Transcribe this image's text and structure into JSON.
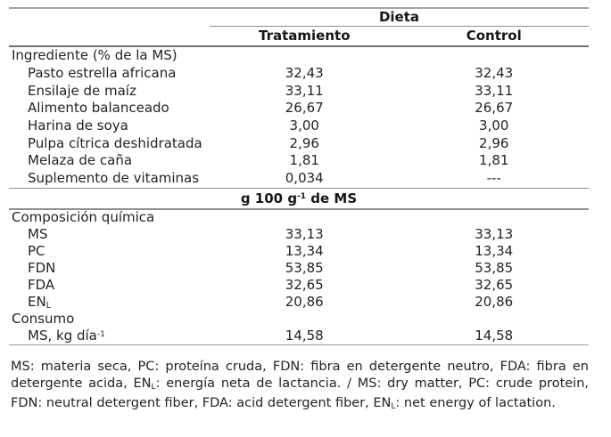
{
  "colors": {
    "background": "#ffffff",
    "text": "#232323",
    "bold_text": "#161616",
    "rule_light": "#a2a2a2",
    "rule_medium": "#8f8f8f",
    "rule_dark": "#707070"
  },
  "table": {
    "header": {
      "group": "Dieta",
      "treatment": "Tratamiento",
      "control": "Control"
    },
    "ingredients": {
      "title": "Ingrediente (% de la MS)",
      "rows": [
        {
          "label": "Pasto estrella africana",
          "treatment": "32,43",
          "control": "32,43"
        },
        {
          "label": "Ensilaje de maíz",
          "treatment": "33,11",
          "control": "33,11"
        },
        {
          "label": "Alimento balanceado",
          "treatment": "26,67",
          "control": "26,67"
        },
        {
          "label": "Harina de soya",
          "treatment": "3,00",
          "control": "3,00"
        },
        {
          "label": "Pulpa cítrica deshidratada",
          "treatment": "2,96",
          "control": "2,96"
        },
        {
          "label": "Melaza de caña",
          "treatment": "1,81",
          "control": "1,81"
        },
        {
          "label": "Suplemento de vitaminas",
          "treatment": "0,034",
          "control": "---"
        }
      ]
    },
    "unit_band": {
      "segments": [
        {
          "text": "g 100 g"
        },
        {
          "text": "-1",
          "style": "sup"
        },
        {
          "text": " de MS"
        }
      ]
    },
    "composition": {
      "title": "Composición química",
      "rows": [
        {
          "label": "MS",
          "treatment": "33,13",
          "control": "33,13"
        },
        {
          "label": "PC",
          "treatment": "13,34",
          "control": "13,34"
        },
        {
          "label": "FDN",
          "treatment": "53,85",
          "control": "53,85"
        },
        {
          "label": "FDA",
          "treatment": "32,65",
          "control": "32,65"
        },
        {
          "label_segments": [
            {
              "text": "EN"
            },
            {
              "text": "L",
              "style": "sub"
            }
          ],
          "treatment": "20,86",
          "control": "20,86"
        }
      ]
    },
    "consumption": {
      "title": "Consumo",
      "rows": [
        {
          "label_segments": [
            {
              "text": "MS, kg día"
            },
            {
              "text": "-1",
              "style": "sup"
            }
          ],
          "treatment": "14,58",
          "control": "14,58"
        }
      ]
    }
  },
  "footnote": {
    "segments": [
      {
        "text": "MS: materia seca, PC: proteína cruda, FDN: fibra en detergente neutro, FDA: fibra en detergente acida, EN"
      },
      {
        "text": "L",
        "style": "sub"
      },
      {
        "text": ": energía neta de lactancia. / MS: dry matter, PC: crude protein, FDN: neutral detergent fiber, FDA: acid detergent fiber, EN"
      },
      {
        "text": "L",
        "style": "sub"
      },
      {
        "text": ": net energy of lactation."
      }
    ]
  }
}
